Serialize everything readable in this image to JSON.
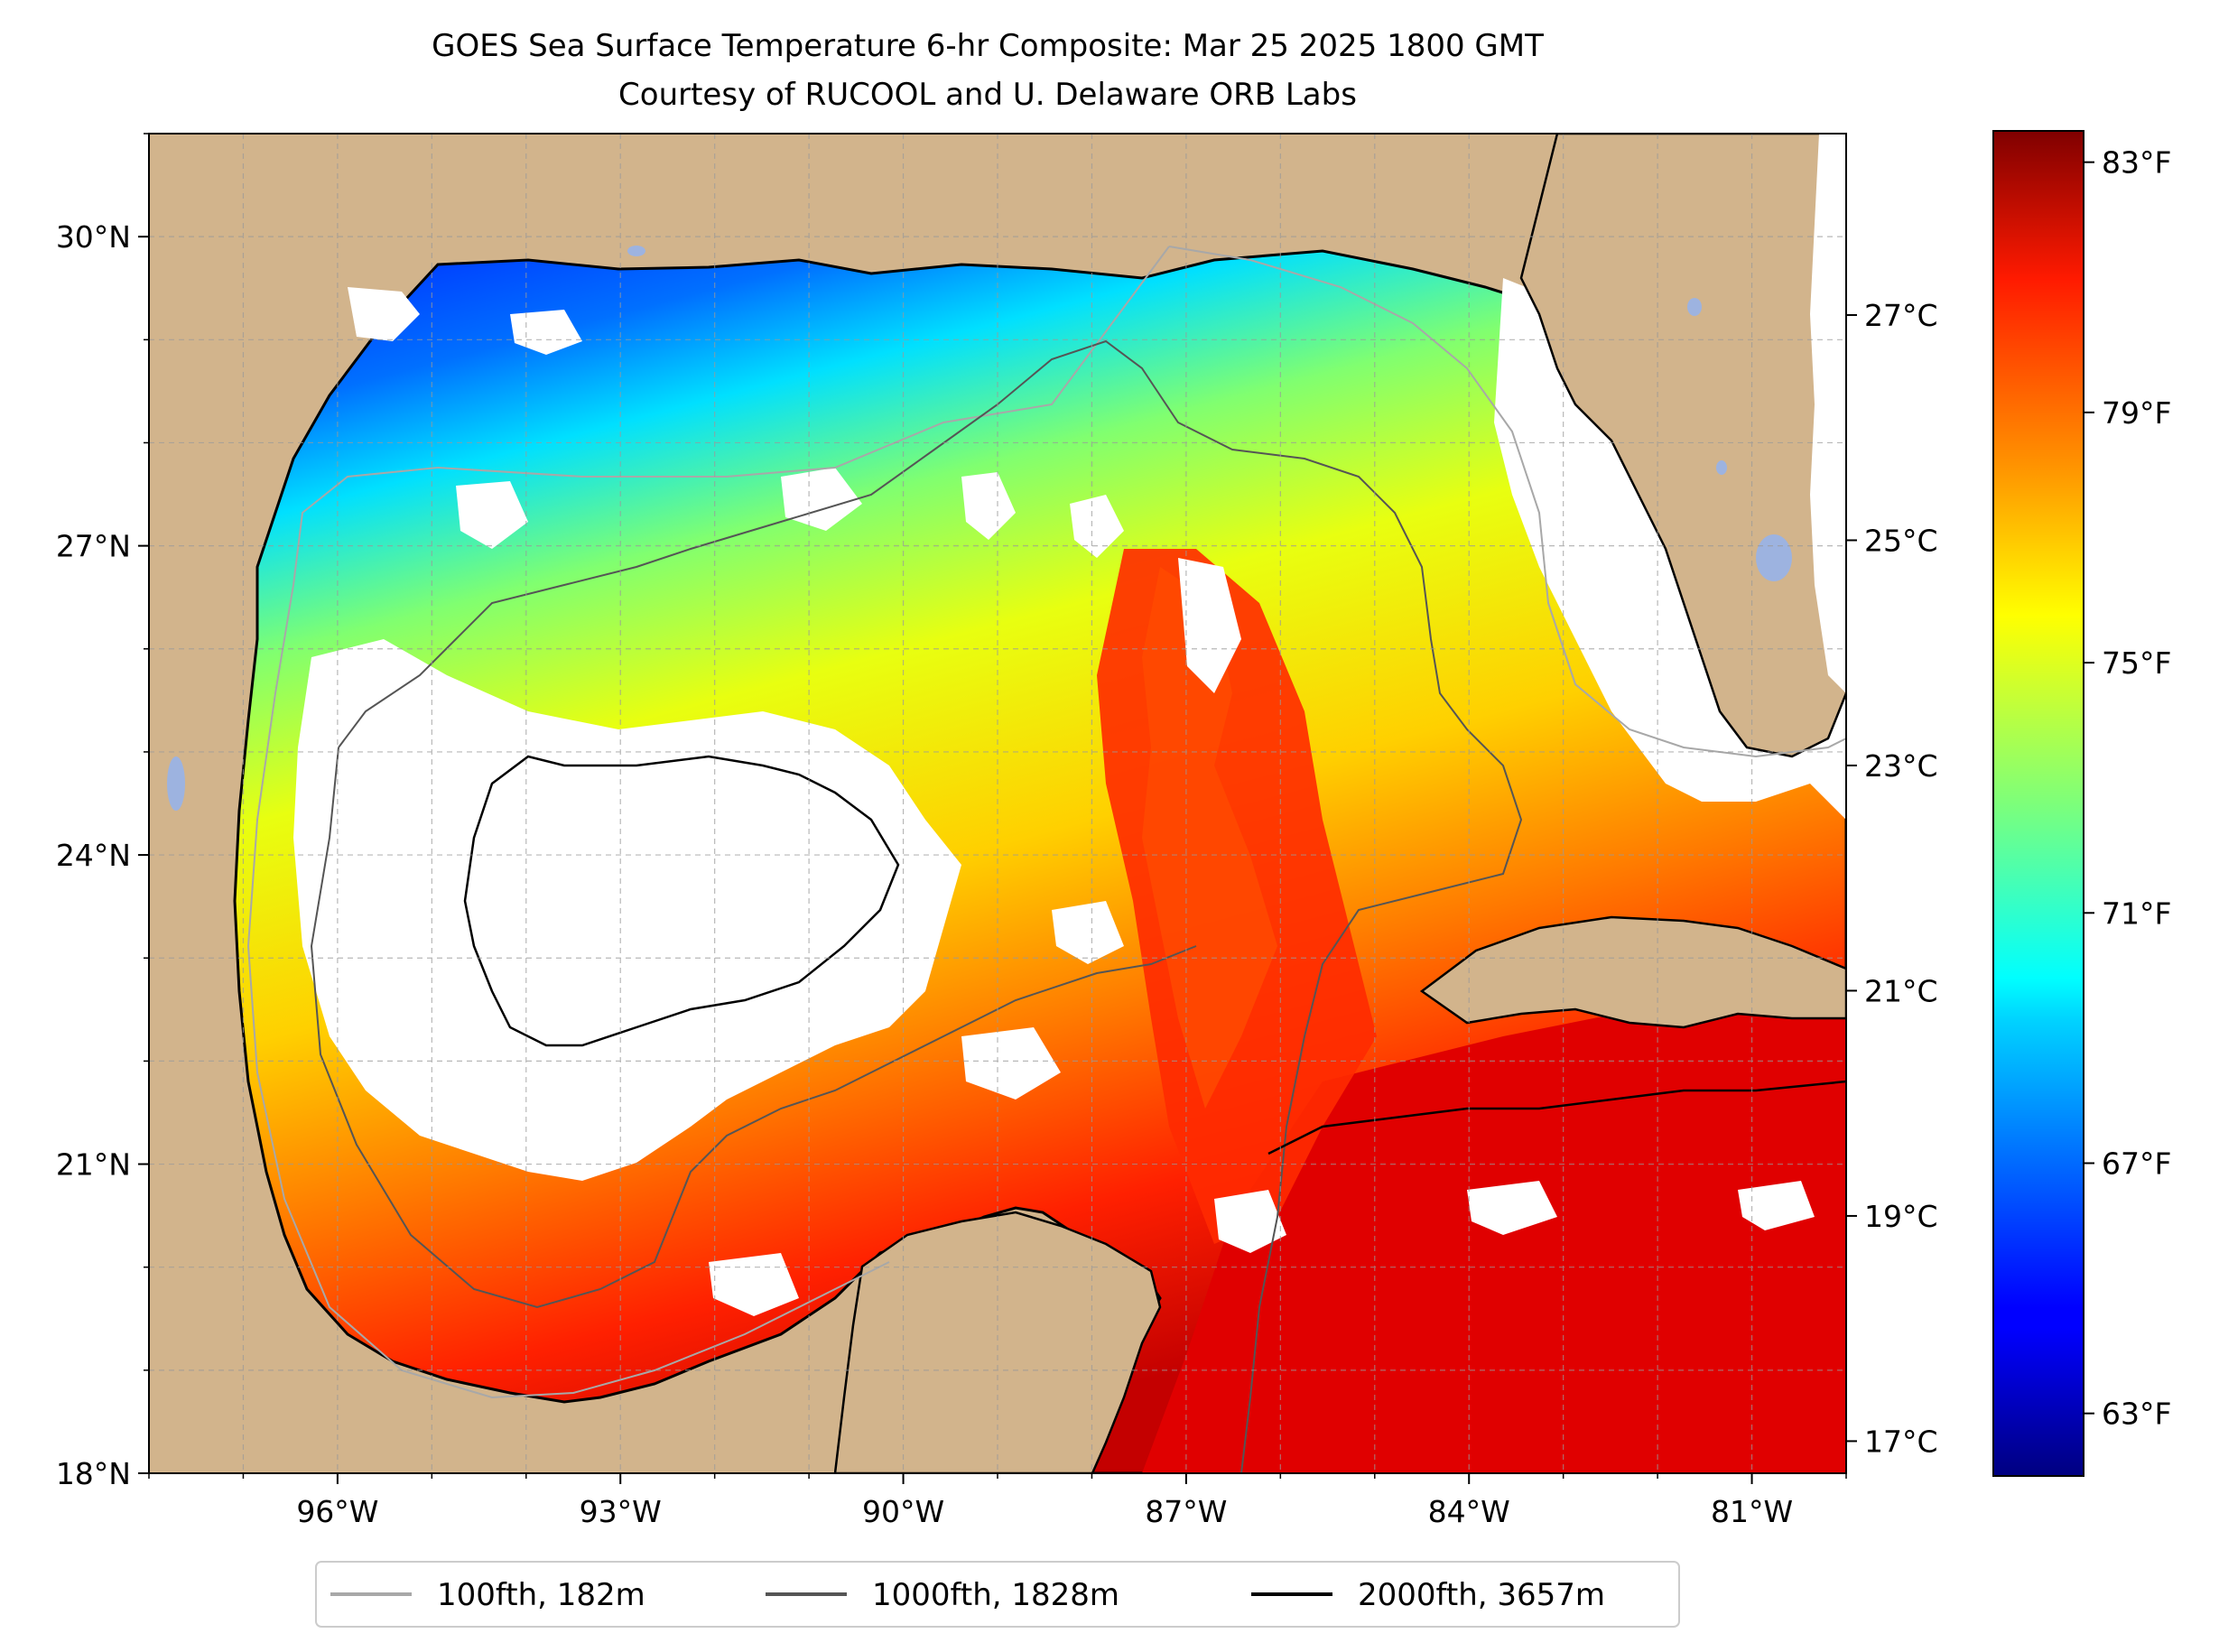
{
  "title": {
    "line1": "GOES Sea Surface Temperature 6-hr Composite: Mar 25 2025 1800 GMT",
    "line2": "Courtesy of RUCOOL and U. Delaware ORB Labs"
  },
  "map": {
    "lon_range": [
      -98,
      -80
    ],
    "lat_range": [
      18,
      31
    ],
    "land_color": "#d2b48c",
    "no_data_color": "#ffffff",
    "lake_color": "#9db3e0",
    "gridlines": true,
    "lat_ticks": [
      {
        "value": 30,
        "label": "30°N"
      },
      {
        "value": 27,
        "label": "27°N"
      },
      {
        "value": 24,
        "label": "24°N"
      },
      {
        "value": 21,
        "label": "21°N"
      },
      {
        "value": 18,
        "label": "18°N"
      }
    ],
    "lon_ticks": [
      {
        "value": -96,
        "label": "96°W"
      },
      {
        "value": -93,
        "label": "93°W"
      },
      {
        "value": -90,
        "label": "90°W"
      },
      {
        "value": -87,
        "label": "87°W"
      },
      {
        "value": -84,
        "label": "84°W"
      },
      {
        "value": -81,
        "label": "81°W"
      }
    ]
  },
  "colorbar": {
    "colormap": "jet",
    "range_f": [
      62,
      83.5
    ],
    "fahrenheit_ticks": [
      {
        "value": 83,
        "label": "83°F"
      },
      {
        "value": 79,
        "label": "79°F"
      },
      {
        "value": 75,
        "label": "75°F"
      },
      {
        "value": 71,
        "label": "71°F"
      },
      {
        "value": 67,
        "label": "67°F"
      },
      {
        "value": 63,
        "label": "63°F"
      }
    ],
    "celsius_ticks": [
      {
        "value": 27,
        "label": "27°C"
      },
      {
        "value": 25,
        "label": "25°C"
      },
      {
        "value": 23,
        "label": "23°C"
      },
      {
        "value": 21,
        "label": "21°C"
      },
      {
        "value": 19,
        "label": "19°C"
      },
      {
        "value": 17,
        "label": "17°C"
      }
    ]
  },
  "legend": {
    "placement": "bottom-center",
    "items": [
      {
        "label": "100fth, 182m",
        "color": "#a8a8a8"
      },
      {
        "label": "1000fth, 1828m",
        "color": "#555555"
      },
      {
        "label": "2000fth, 3657m",
        "color": "#000000"
      }
    ]
  }
}
